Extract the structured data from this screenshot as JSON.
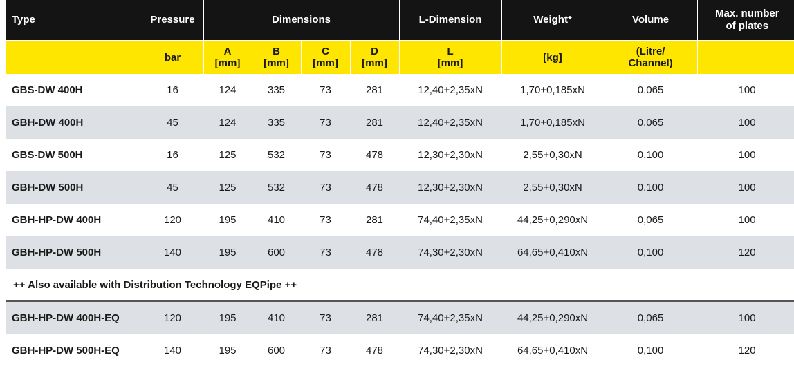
{
  "table": {
    "header_top": {
      "type": "Type",
      "pressure": "Pressure",
      "dimensions": "Dimensions",
      "l_dimension": "L-Dimension",
      "weight": "Weight*",
      "volume": "Volume",
      "max_plates_line1": "Max. number",
      "max_plates_line2": "of plates"
    },
    "header_units": {
      "type": "",
      "pressure": "bar",
      "a_label": "A",
      "a_unit": "[mm]",
      "b_label": "B",
      "b_unit": "[mm]",
      "c_label": "C",
      "c_unit": "[mm]",
      "d_label": "D",
      "d_unit": "[mm]",
      "l_label": "L",
      "l_unit": "[mm]",
      "weight": "[kg]",
      "volume_line1": "(Litre/",
      "volume_line2": "Channel)",
      "max_plates": ""
    },
    "rows": [
      {
        "type": "GBS-DW 400H",
        "pressure": "16",
        "a": "124",
        "b": "335",
        "c": "73",
        "d": "281",
        "l": "12,40+2,35xN",
        "weight": "1,70+0,185xN",
        "volume": "0.065",
        "max_plates": "100"
      },
      {
        "type": "GBH-DW 400H",
        "pressure": "45",
        "a": "124",
        "b": "335",
        "c": "73",
        "d": "281",
        "l": "12,40+2,35xN",
        "weight": "1,70+0,185xN",
        "volume": "0.065",
        "max_plates": "100"
      },
      {
        "type": "GBS-DW 500H",
        "pressure": "16",
        "a": "125",
        "b": "532",
        "c": "73",
        "d": "478",
        "l": "12,30+2,30xN",
        "weight": "2,55+0,30xN",
        "volume": "0.100",
        "max_plates": "100"
      },
      {
        "type": "GBH-DW 500H",
        "pressure": "45",
        "a": "125",
        "b": "532",
        "c": "73",
        "d": "478",
        "l": "12,30+2,30xN",
        "weight": "2,55+0,30xN",
        "volume": "0.100",
        "max_plates": "100"
      },
      {
        "type": "GBH-HP-DW 400H",
        "pressure": "120",
        "a": "195",
        "b": "410",
        "c": "73",
        "d": "281",
        "l": "74,40+2,35xN",
        "weight": "44,25+0,290xN",
        "volume": "0,065",
        "max_plates": "100"
      },
      {
        "type": "GBH-HP-DW 500H",
        "pressure": "140",
        "a": "195",
        "b": "600",
        "c": "73",
        "d": "478",
        "l": "74,30+2,30xN",
        "weight": "64,65+0,410xN",
        "volume": "0,100",
        "max_plates": "120"
      }
    ],
    "note": "++ Also available with Distribution Technology EQPipe ++",
    "eq_rows": [
      {
        "type": "GBH-HP-DW 400H-EQ",
        "pressure": "120",
        "a": "195",
        "b": "410",
        "c": "73",
        "d": "281",
        "l": "74,40+2,35xN",
        "weight": "44,25+0,290xN",
        "volume": "0,065",
        "max_plates": "100"
      },
      {
        "type": "GBH-HP-DW 500H-EQ",
        "pressure": "140",
        "a": "195",
        "b": "600",
        "c": "73",
        "d": "478",
        "l": "74,30+2,30xN",
        "weight": "64,65+0,410xN",
        "volume": "0,100",
        "max_plates": "120"
      }
    ]
  },
  "colors": {
    "header_dark": "#141414",
    "header_yellow": "#ffe600",
    "row_grey": "#dde0e4"
  }
}
